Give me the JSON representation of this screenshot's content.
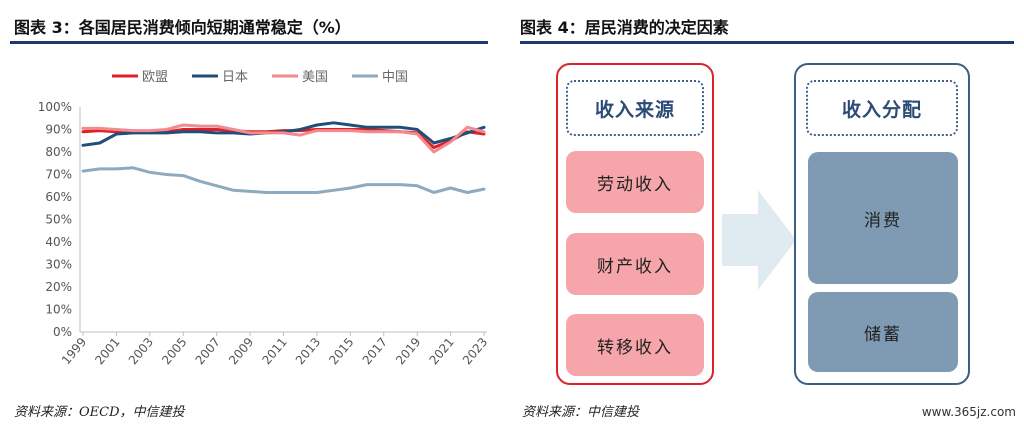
{
  "left": {
    "title": "图表 3：各国居民消费倾向短期通常稳定（%）",
    "source": "资料来源：OECD，中信建投"
  },
  "right": {
    "title": "图表 4：居民消费的决定因素",
    "income_head": "收入来源",
    "income_items": [
      "劳动收入",
      "财产收入",
      "转移收入"
    ],
    "alloc_head": "收入分配",
    "alloc_items": [
      "消费",
      "储蓄"
    ],
    "source": "资料来源：中信建投"
  },
  "watermark": "www.365jz.com",
  "chart_data": {
    "type": "line",
    "x": [
      1999,
      2000,
      2001,
      2002,
      2003,
      2004,
      2005,
      2006,
      2007,
      2008,
      2009,
      2010,
      2011,
      2012,
      2013,
      2014,
      2015,
      2016,
      2017,
      2018,
      2019,
      2020,
      2021,
      2022,
      2023
    ],
    "x_tick_labels": [
      "1999",
      "2001",
      "2003",
      "2005",
      "2007",
      "2009",
      "2011",
      "2013",
      "2015",
      "2017",
      "2019",
      "2021",
      "2023"
    ],
    "y_tick_labels": [
      "0%",
      "10%",
      "20%",
      "30%",
      "40%",
      "50%",
      "60%",
      "70%",
      "80%",
      "90%",
      "100%"
    ],
    "ylim": [
      0,
      100
    ],
    "grid": false,
    "legend_position": "top",
    "series": [
      {
        "name": "欧盟",
        "color": "#e01f26",
        "values": [
          89,
          89.5,
          89,
          88.5,
          89,
          89,
          90,
          90,
          90,
          89.5,
          89,
          89,
          89.5,
          89.5,
          90,
          90,
          90,
          90,
          89.5,
          89,
          88.5,
          82,
          85,
          89,
          88
        ]
      },
      {
        "name": "日本",
        "color": "#1f4e79",
        "values": [
          83,
          84,
          88,
          88.5,
          88.5,
          88.5,
          89,
          89,
          88.5,
          88.5,
          88,
          88.5,
          89,
          90,
          92,
          93,
          92,
          91,
          91,
          91,
          90,
          84,
          86,
          88.5,
          91
        ]
      },
      {
        "name": "美国",
        "color": "#f28b8f",
        "values": [
          90.5,
          90.5,
          90,
          89.5,
          89.5,
          90,
          92,
          91.5,
          91.5,
          90,
          88.5,
          88.5,
          88.5,
          87.5,
          89.5,
          89.5,
          89.5,
          89,
          89,
          89,
          88,
          80,
          84.5,
          91,
          89
        ]
      },
      {
        "name": "中国",
        "color": "#8eaabe",
        "values": [
          71.5,
          72.5,
          72.5,
          73,
          71,
          70,
          69.5,
          67,
          65,
          63,
          62.5,
          62,
          62,
          62,
          62,
          63,
          64,
          65.5,
          65.5,
          65.5,
          65,
          62,
          64,
          62,
          63.5
        ]
      }
    ]
  }
}
